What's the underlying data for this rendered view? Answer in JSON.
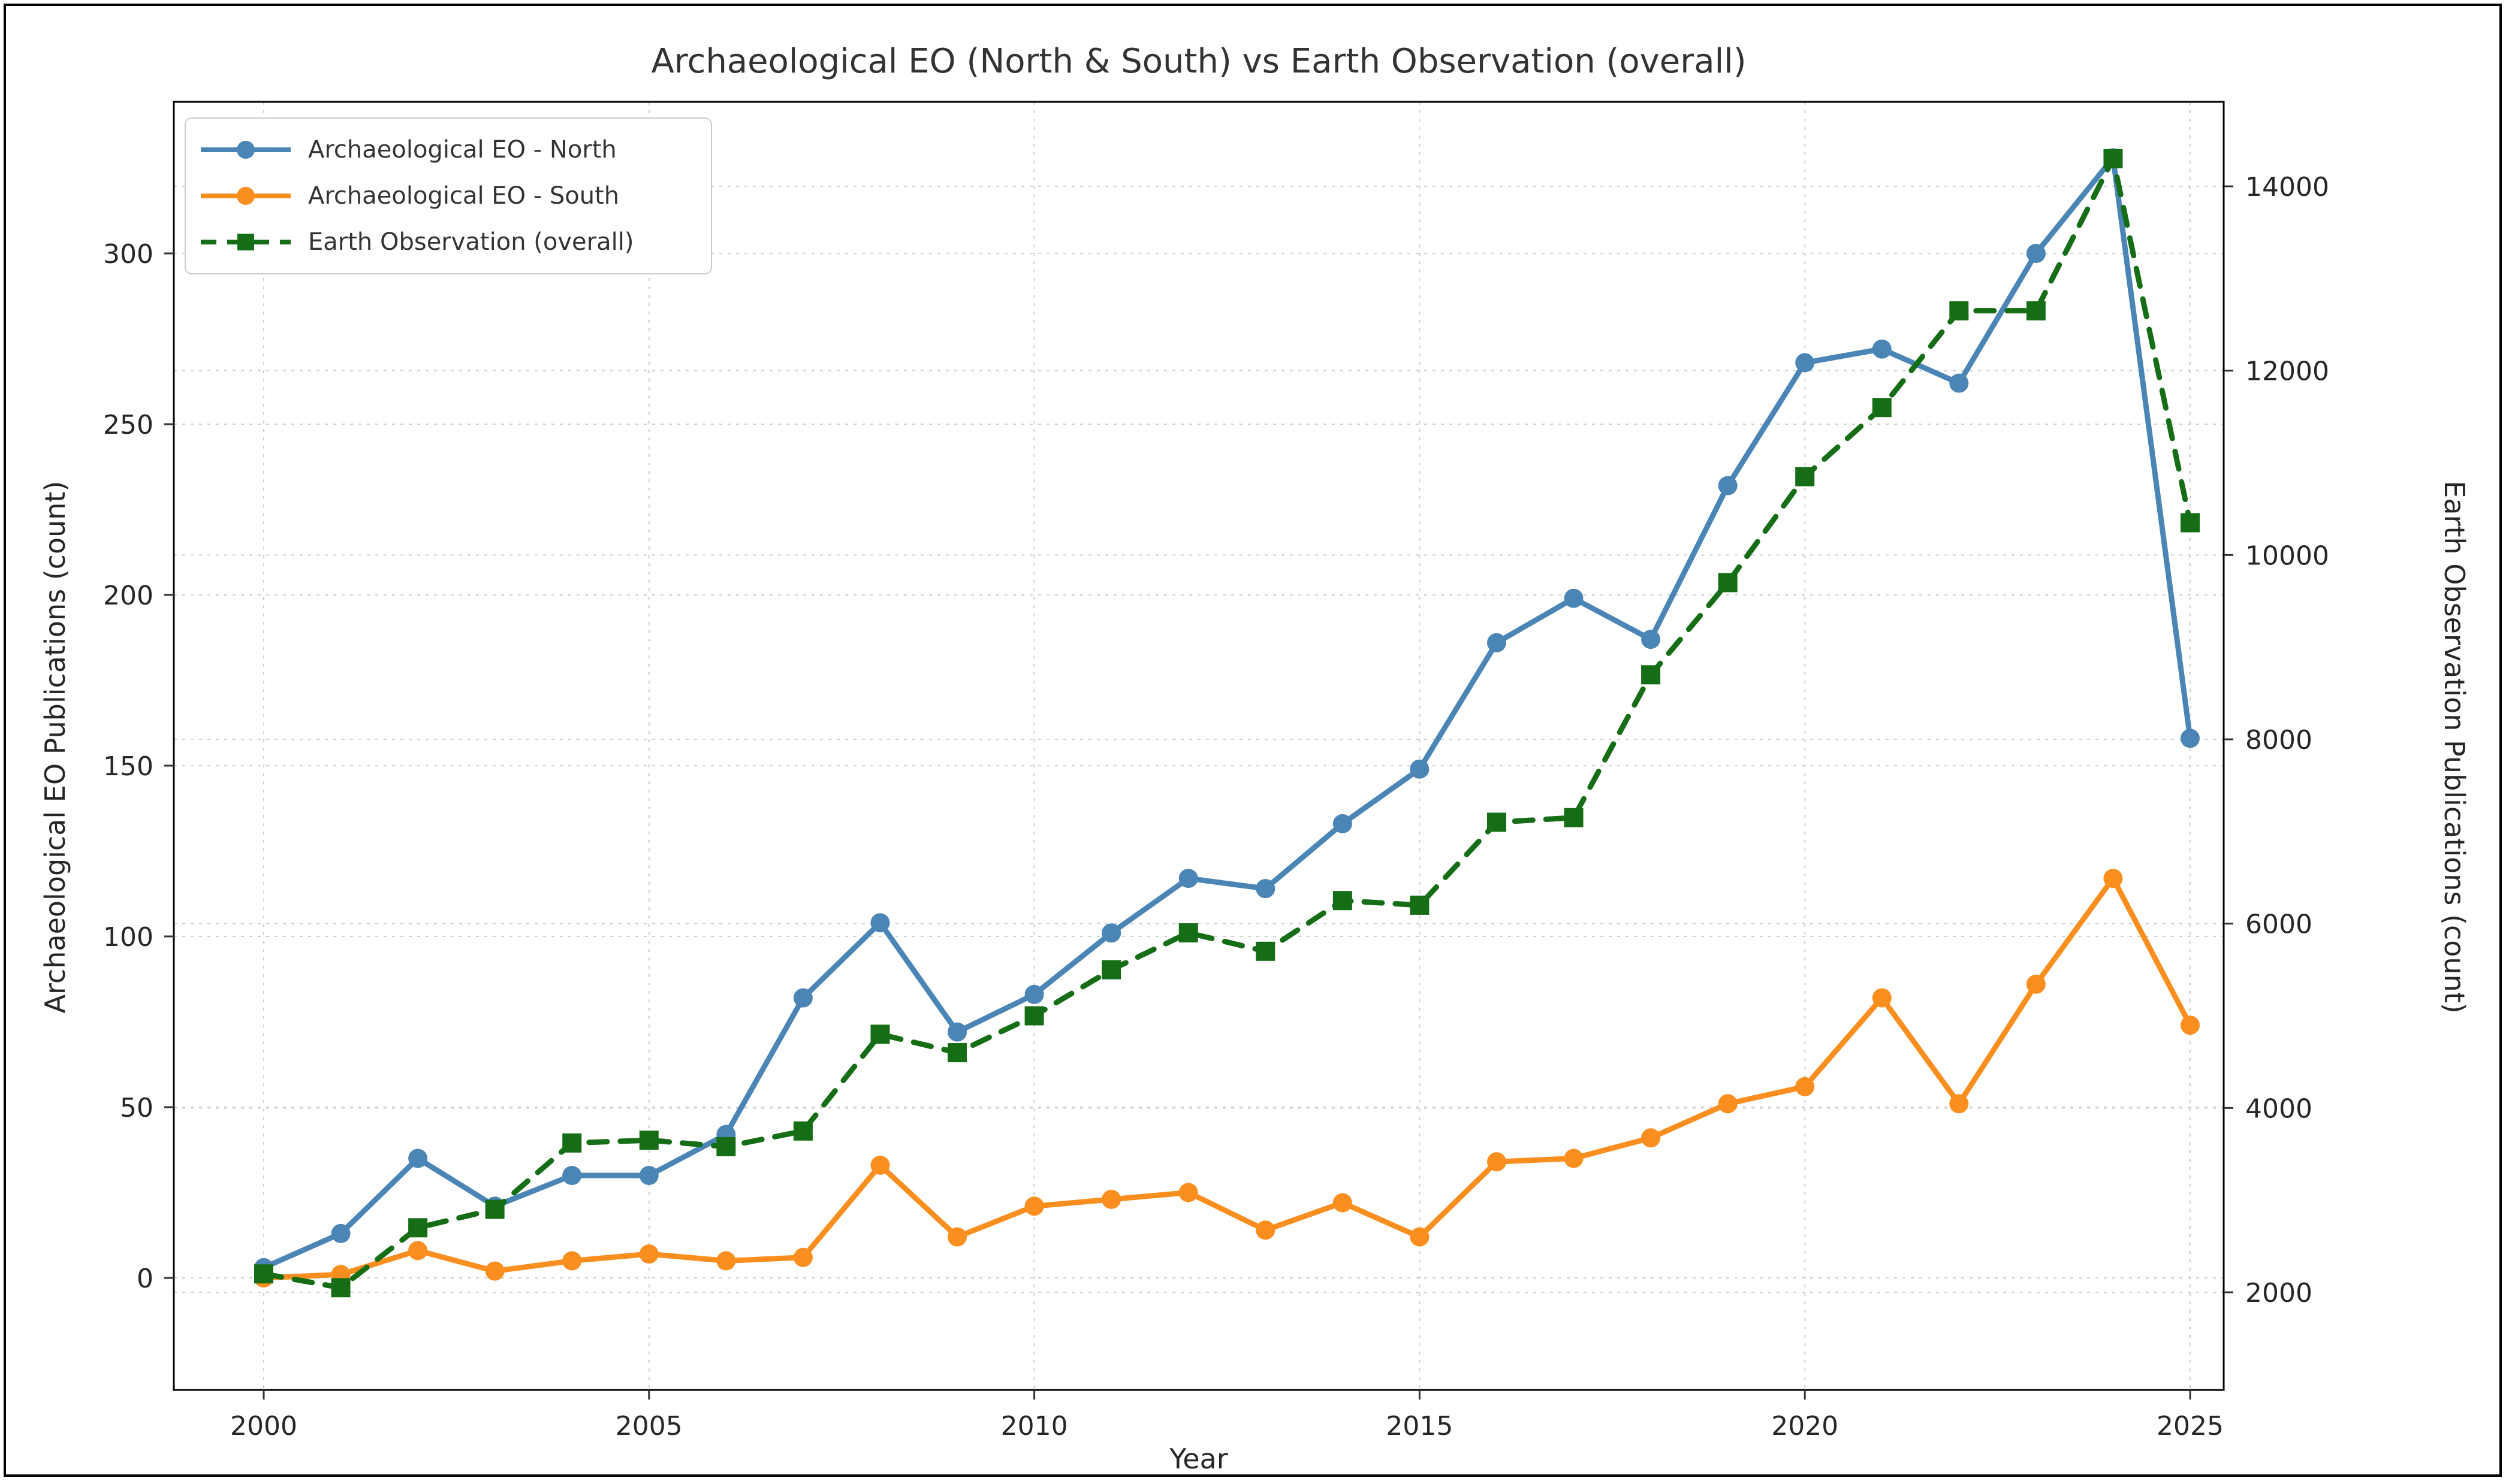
{
  "title": "Archaeological EO (North & South) vs Earth Observation (overall)",
  "axes": {
    "x": {
      "label": "Year",
      "ticks": [
        2000,
        2005,
        2010,
        2015,
        2020,
        2025
      ]
    },
    "y_left": {
      "label": "Archaeological EO Publications (count)",
      "ticks": [
        0,
        50,
        100,
        150,
        200,
        250,
        300
      ]
    },
    "y_right": {
      "label": "Earth Observation Publications (count)",
      "ticks": [
        2000,
        4000,
        6000,
        8000,
        10000,
        12000,
        14000
      ]
    }
  },
  "legend": {
    "items": [
      {
        "label": "Archaeological EO - North",
        "color": "#4A85B5",
        "marker": "circle",
        "dash": "solid"
      },
      {
        "label": "Archaeological EO - South",
        "color": "#FA8E1E",
        "marker": "circle",
        "dash": "solid"
      },
      {
        "label": "Earth Observation (overall)",
        "color": "#156E15",
        "marker": "square",
        "dash": "dashed"
      }
    ]
  },
  "colors": {
    "north": "#4A85B5",
    "south": "#FA8E1E",
    "overall": "#156E15",
    "grid": "#CFCFCF",
    "spine": "#000000",
    "text": "#262626"
  },
  "chart_data": {
    "type": "line",
    "title": "Archaeological EO (North & South) vs Earth Observation (overall)",
    "xlabel": "Year",
    "ylabel_left": "Archaeological EO Publications (count)",
    "ylabel_right": "Earth Observation Publications (count)",
    "grid": true,
    "legend_position": "upper left",
    "x": [
      2000,
      2001,
      2002,
      2003,
      2004,
      2005,
      2006,
      2007,
      2008,
      2009,
      2010,
      2011,
      2012,
      2013,
      2014,
      2015,
      2016,
      2017,
      2018,
      2019,
      2020,
      2021,
      2022,
      2023,
      2024,
      2025
    ],
    "x_tick_labels": [
      "2000",
      "2005",
      "2010",
      "2015",
      "2020",
      "2025"
    ],
    "y_left_range": [
      0,
      300
    ],
    "y_right_range": [
      2000,
      14000
    ],
    "series": [
      {
        "name": "Archaeological EO - North",
        "axis": "left",
        "style": "solid",
        "marker": "circle",
        "color": "#4A85B5",
        "values": [
          3,
          13,
          35,
          21,
          30,
          30,
          42,
          82,
          104,
          72,
          83,
          101,
          117,
          114,
          133,
          149,
          186,
          199,
          187,
          232,
          268,
          272,
          262,
          300,
          328,
          158
        ]
      },
      {
        "name": "Archaeological EO - South",
        "axis": "left",
        "style": "solid",
        "marker": "circle",
        "color": "#FA8E1E",
        "values": [
          0,
          1,
          8,
          2,
          5,
          7,
          5,
          6,
          33,
          12,
          21,
          23,
          25,
          14,
          22,
          12,
          34,
          35,
          41,
          51,
          56,
          82,
          51,
          86,
          117,
          74
        ]
      },
      {
        "name": "Earth Observation (overall)",
        "axis": "right",
        "style": "dashed",
        "marker": "square",
        "color": "#156E15",
        "values": [
          2200,
          2050,
          2700,
          2900,
          3620,
          3650,
          3580,
          3750,
          4800,
          4600,
          5000,
          5500,
          5900,
          5700,
          6250,
          6200,
          7100,
          7150,
          8700,
          9700,
          10850,
          11600,
          12650,
          12650,
          14300,
          10350
        ]
      }
    ]
  }
}
